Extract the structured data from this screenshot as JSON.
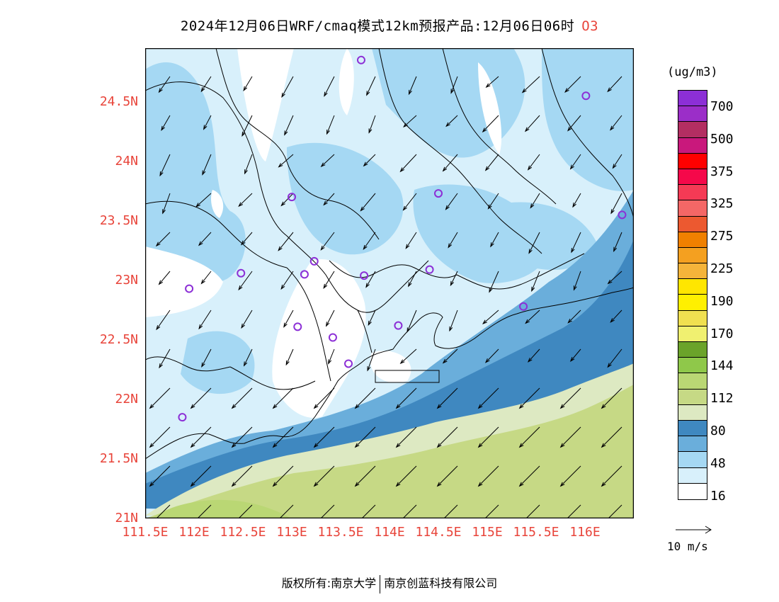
{
  "title": {
    "main": "2024年12月06日WRF/cmaq模式12km预报产品:12月06日06时",
    "pollutant": "O3"
  },
  "axes": {
    "y_labels": [
      "24.5N",
      "24N",
      "23.5N",
      "23N",
      "22.5N",
      "22N",
      "21.5N",
      "21N"
    ],
    "x_labels": [
      "111.5E",
      "112E",
      "112.5E",
      "113E",
      "113.5E",
      "114E",
      "114.5E",
      "115E",
      "115.5E",
      "116E"
    ]
  },
  "colorbar": {
    "units": "(ug/m3)",
    "labels": [
      "700",
      "500",
      "375",
      "325",
      "275",
      "225",
      "190",
      "170",
      "144",
      "112",
      "80",
      "48",
      "16"
    ],
    "colors": [
      "#8c2fd6",
      "#9b2ec8",
      "#b32e62",
      "#c9187c",
      "#ff0000",
      "#f5084a",
      "#f53a55",
      "#f46766",
      "#ec5930",
      "#f08000",
      "#f4a020",
      "#f5b43a",
      "#ffe600",
      "#fff000",
      "#f0e050",
      "#f0f070",
      "#6ba32a",
      "#8fc84a",
      "#bad774",
      "#c6d985",
      "#dde9c2",
      "#3f88c0",
      "#6aaedb",
      "#a5d8f3",
      "#d8f0fb",
      "#ffffff"
    ]
  },
  "wind_reference": {
    "label": "10 m/s"
  },
  "footer": {
    "left": "版权所有:南京大学",
    "right": "南京创蓝科技有限公司"
  },
  "map": {
    "lon_range": [
      111.5,
      116.5
    ],
    "lat_range": [
      21.0,
      24.95
    ],
    "colors": {
      "white": "#ffffff",
      "c16": "#d8f0fb",
      "c32": "#a5d8f3",
      "c48": "#6aaedb",
      "c64": "#3f88c0",
      "c80": "#dde9c2",
      "c96": "#c6d985",
      "c112": "#bad774"
    },
    "stations": [
      {
        "lon": 113.71,
        "lat": 24.85
      },
      {
        "lon": 116.01,
        "lat": 24.55
      },
      {
        "lon": 113.0,
        "lat": 23.7
      },
      {
        "lon": 114.5,
        "lat": 23.73
      },
      {
        "lon": 116.38,
        "lat": 23.55
      },
      {
        "lon": 113.23,
        "lat": 23.16
      },
      {
        "lon": 113.13,
        "lat": 23.05
      },
      {
        "lon": 112.48,
        "lat": 23.06
      },
      {
        "lon": 113.74,
        "lat": 23.04
      },
      {
        "lon": 114.41,
        "lat": 23.09
      },
      {
        "lon": 111.95,
        "lat": 22.93
      },
      {
        "lon": 115.37,
        "lat": 22.78
      },
      {
        "lon": 113.06,
        "lat": 22.61
      },
      {
        "lon": 113.42,
        "lat": 22.52
      },
      {
        "lon": 114.09,
        "lat": 22.62
      },
      {
        "lon": 113.58,
        "lat": 22.3
      },
      {
        "lon": 111.88,
        "lat": 21.85
      }
    ]
  }
}
